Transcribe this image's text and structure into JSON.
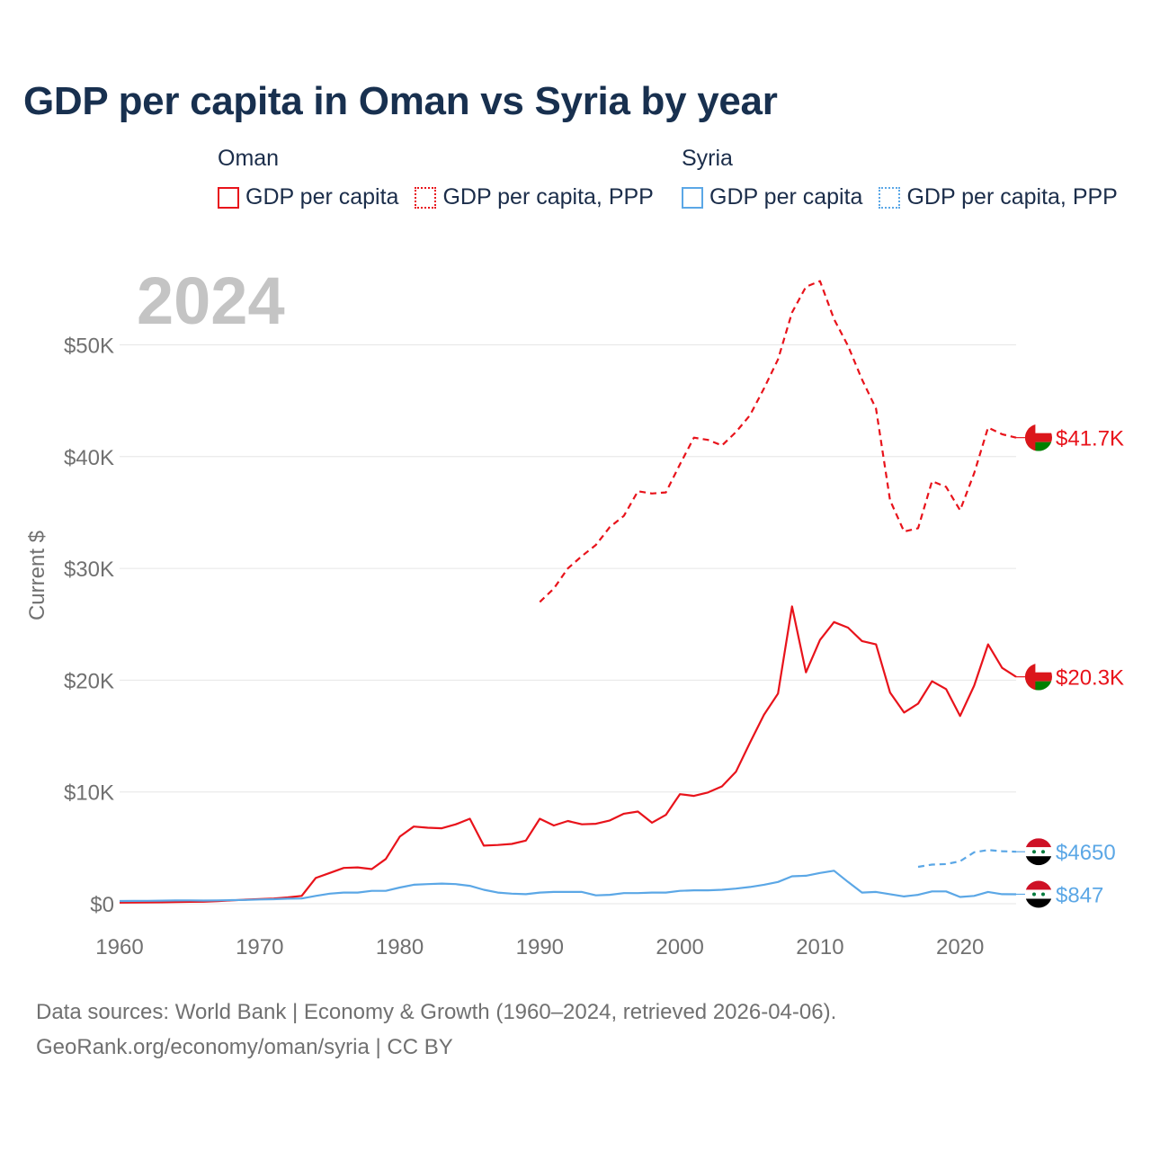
{
  "title": "GDP per capita in Oman vs Syria by year",
  "legend": {
    "oman": {
      "country": "Oman",
      "items": [
        {
          "label": "GDP per capita",
          "style": "solid",
          "color": "#e8131b"
        },
        {
          "label": "GDP per capita, PPP",
          "style": "dotted",
          "color": "#e8131b"
        }
      ]
    },
    "syria": {
      "country": "Syria",
      "items": [
        {
          "label": "GDP per capita",
          "style": "solid",
          "color": "#5ba7e6"
        },
        {
          "label": "GDP per capita, PPP",
          "style": "dotted",
          "color": "#5ba7e6"
        }
      ]
    }
  },
  "year_label": "2024",
  "footer": {
    "line1": "Data sources: World Bank | Economy & Growth (1960–2024, retrieved 2026-04-06).",
    "line2": "GeoRank.org/economy/oman/syria | CC BY"
  },
  "chart_data": {
    "type": "line",
    "title": "GDP per capita in Oman vs Syria by year",
    "xlabel": "",
    "ylabel": "Current $",
    "xlim": [
      1960,
      2024
    ],
    "ylim": [
      0,
      55000
    ],
    "grid": true,
    "legend_position": "top",
    "x_ticks": [
      1960,
      1970,
      1980,
      1990,
      2000,
      2010,
      2020
    ],
    "y_ticks": [
      {
        "value": 0,
        "label": "$0"
      },
      {
        "value": 10000,
        "label": "$10K"
      },
      {
        "value": 20000,
        "label": "$20K"
      },
      {
        "value": 30000,
        "label": "$30K"
      },
      {
        "value": 40000,
        "label": "$40K"
      },
      {
        "value": 50000,
        "label": "$50K"
      }
    ],
    "series": [
      {
        "name": "Oman GDP per capita",
        "country": "Oman",
        "color": "#e8131b",
        "dash": false,
        "end_label": "$20.3K",
        "flag": "oman",
        "x": [
          1960,
          1961,
          1962,
          1963,
          1964,
          1965,
          1966,
          1967,
          1968,
          1969,
          1970,
          1971,
          1972,
          1973,
          1974,
          1975,
          1976,
          1977,
          1978,
          1979,
          1980,
          1981,
          1982,
          1983,
          1984,
          1985,
          1986,
          1987,
          1988,
          1989,
          1990,
          1991,
          1992,
          1993,
          1994,
          1995,
          1996,
          1997,
          1998,
          1999,
          2000,
          2001,
          2002,
          2003,
          2004,
          2005,
          2006,
          2007,
          2008,
          2009,
          2010,
          2011,
          2012,
          2013,
          2014,
          2015,
          2016,
          2017,
          2018,
          2019,
          2020,
          2021,
          2022,
          2023,
          2024
        ],
        "values": [
          100,
          110,
          120,
          130,
          150,
          170,
          180,
          230,
          300,
          360,
          420,
          470,
          560,
          700,
          2300,
          2750,
          3200,
          3250,
          3100,
          4000,
          6000,
          6900,
          6800,
          6750,
          7100,
          7600,
          5200,
          5250,
          5350,
          5650,
          7600,
          7000,
          7400,
          7100,
          7150,
          7450,
          8050,
          8250,
          7250,
          7950,
          9800,
          9650,
          9950,
          10500,
          11800,
          14400,
          16900,
          18800,
          26600,
          20700,
          23600,
          25200,
          24700,
          23500,
          23200,
          18900,
          17100,
          17900,
          19900,
          19200,
          16800,
          19500,
          23200,
          21100,
          20300
        ]
      },
      {
        "name": "Oman GDP per capita, PPP",
        "country": "Oman",
        "color": "#e8131b",
        "dash": true,
        "end_label": "$41.7K",
        "flag": "oman",
        "x": [
          1990,
          1991,
          1992,
          1993,
          1994,
          1995,
          1996,
          1997,
          1998,
          1999,
          2000,
          2001,
          2002,
          2003,
          2004,
          2005,
          2006,
          2007,
          2008,
          2009,
          2010,
          2011,
          2012,
          2013,
          2014,
          2015,
          2016,
          2017,
          2018,
          2019,
          2020,
          2021,
          2022,
          2023,
          2024
        ],
        "values": [
          27000,
          28200,
          30000,
          31100,
          32100,
          33700,
          34700,
          36900,
          36700,
          36800,
          39300,
          41700,
          41500,
          41000,
          42200,
          43700,
          46100,
          48700,
          52900,
          55200,
          55700,
          52300,
          49900,
          46900,
          44300,
          36100,
          33300,
          33600,
          37800,
          37300,
          35200,
          38500,
          42600,
          42000,
          41700
        ]
      },
      {
        "name": "Syria GDP per capita",
        "country": "Syria",
        "color": "#5ba7e6",
        "dash": false,
        "end_label": "$847",
        "flag": "syria",
        "x": [
          1960,
          1961,
          1962,
          1963,
          1964,
          1965,
          1966,
          1967,
          1968,
          1969,
          1970,
          1971,
          1972,
          1973,
          1974,
          1975,
          1976,
          1977,
          1978,
          1979,
          1980,
          1981,
          1982,
          1983,
          1984,
          1985,
          1986,
          1987,
          1988,
          1989,
          1990,
          1991,
          1992,
          1993,
          1994,
          1995,
          1996,
          1997,
          1998,
          1999,
          2000,
          2001,
          2002,
          2003,
          2004,
          2005,
          2006,
          2007,
          2008,
          2009,
          2010,
          2011,
          2012,
          2013,
          2014,
          2015,
          2016,
          2017,
          2018,
          2019,
          2020,
          2021,
          2022,
          2023,
          2024
        ],
        "values": [
          240,
          250,
          260,
          270,
          290,
          300,
          280,
          300,
          320,
          340,
          380,
          400,
          450,
          470,
          700,
          900,
          1000,
          1000,
          1150,
          1150,
          1450,
          1700,
          1750,
          1800,
          1750,
          1600,
          1250,
          1000,
          900,
          850,
          1000,
          1050,
          1050,
          1050,
          750,
          800,
          950,
          950,
          1000,
          1000,
          1150,
          1200,
          1200,
          1250,
          1350,
          1500,
          1700,
          1950,
          2450,
          2500,
          2750,
          2950,
          1950,
          1000,
          1050,
          850,
          650,
          800,
          1100,
          1100,
          600,
          700,
          1050,
          850,
          847
        ]
      },
      {
        "name": "Syria GDP per capita, PPP",
        "country": "Syria",
        "color": "#5ba7e6",
        "dash": true,
        "end_label": "$4650",
        "flag": "syria",
        "x": [
          2017,
          2018,
          2019,
          2020,
          2021,
          2022,
          2023,
          2024
        ],
        "values": [
          3300,
          3500,
          3550,
          3800,
          4600,
          4800,
          4700,
          4650
        ]
      }
    ]
  }
}
